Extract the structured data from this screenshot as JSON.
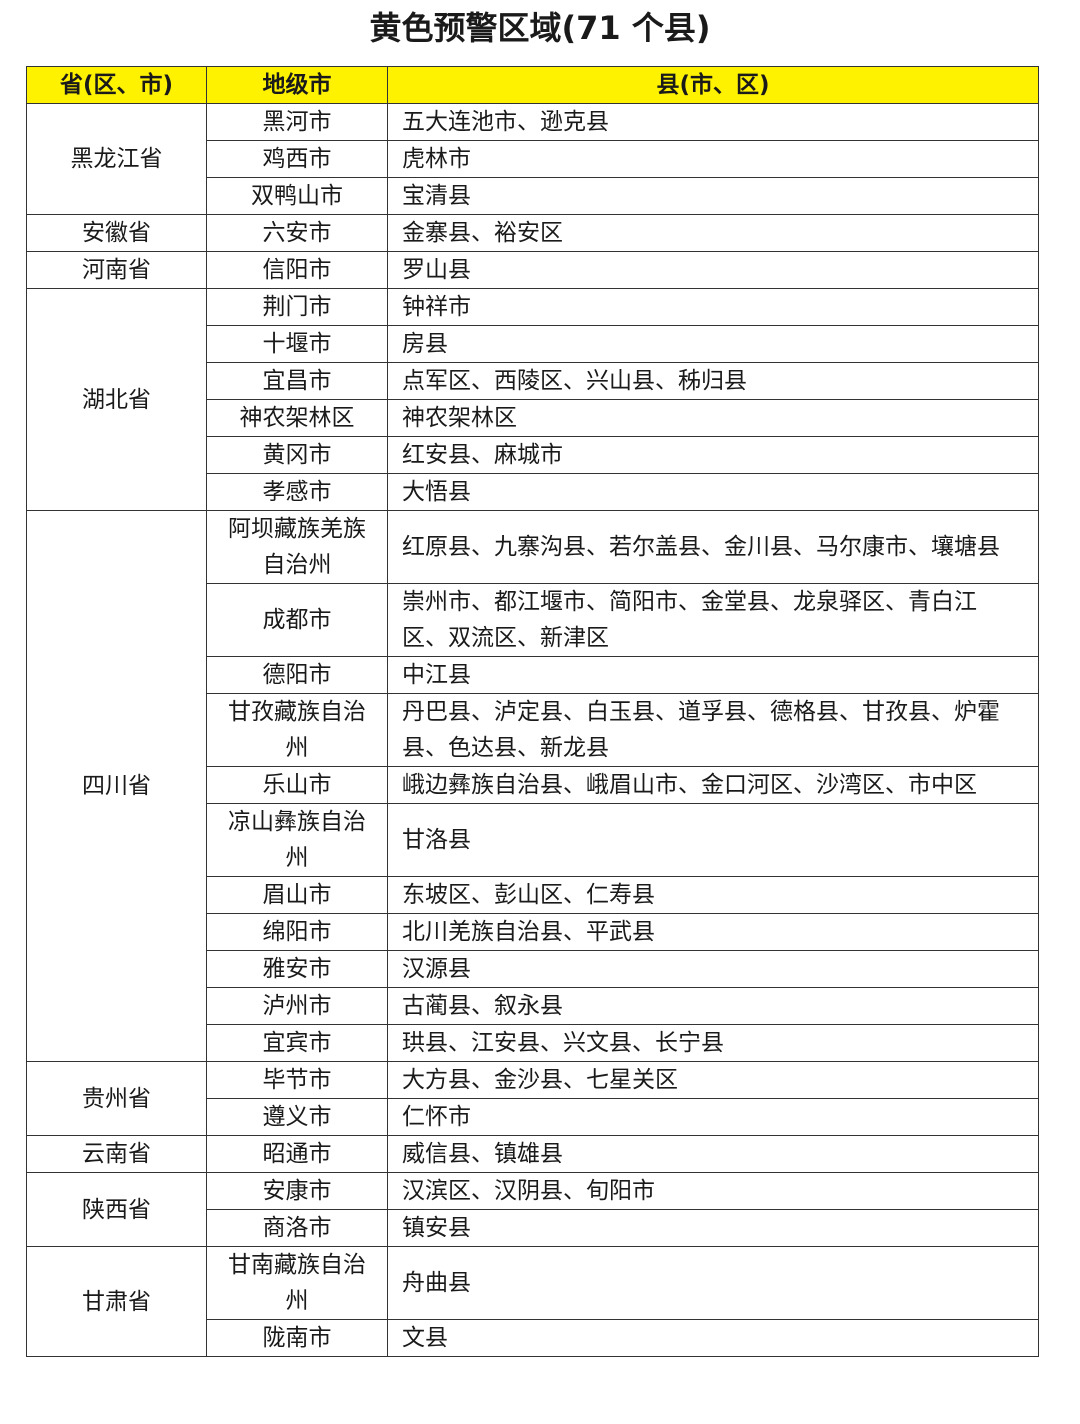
{
  "title": "黄色预警区域(71 个县)",
  "table": {
    "header": [
      "省(区、市)",
      "地级市",
      "县(市、区)"
    ],
    "groups": [
      {
        "province": "黑龙江省",
        "rows": [
          [
            "黑河市",
            "五大连池市、逊克县"
          ],
          [
            "鸡西市",
            "虎林市"
          ],
          [
            "双鸭山市",
            "宝清县"
          ]
        ]
      },
      {
        "province": "安徽省",
        "rows": [
          [
            "六安市",
            "金寨县、裕安区"
          ]
        ]
      },
      {
        "province": "河南省",
        "rows": [
          [
            "信阳市",
            "罗山县"
          ]
        ]
      },
      {
        "province": "湖北省",
        "rows": [
          [
            "荆门市",
            "钟祥市"
          ],
          [
            "十堰市",
            "房县"
          ],
          [
            "宜昌市",
            "点军区、西陵区、兴山县、秭归县"
          ],
          [
            "神农架林区",
            "神农架林区"
          ],
          [
            "黄冈市",
            "红安县、麻城市"
          ],
          [
            "孝感市",
            "大悟县"
          ]
        ]
      },
      {
        "province": "四川省",
        "rows": [
          [
            "阿坝藏族羌族自治州",
            "红原县、九寨沟县、若尔盖县、金川县、马尔康市、壤塘县"
          ],
          [
            "成都市",
            "崇州市、都江堰市、简阳市、金堂县、龙泉驿区、青白江区、双流区、新津区"
          ],
          [
            "德阳市",
            "中江县"
          ],
          [
            "甘孜藏族自治州",
            "丹巴县、泸定县、白玉县、道孚县、德格县、甘孜县、炉霍县、色达县、新龙县"
          ],
          [
            "乐山市",
            "峨边彝族自治县、峨眉山市、金口河区、沙湾区、市中区"
          ],
          [
            "凉山彝族自治州",
            "甘洛县"
          ],
          [
            "眉山市",
            "东坡区、彭山区、仁寿县"
          ],
          [
            "绵阳市",
            "北川羌族自治县、平武县"
          ],
          [
            "雅安市",
            "汉源县"
          ],
          [
            "泸州市",
            "古蔺县、叙永县"
          ],
          [
            "宜宾市",
            "珙县、江安县、兴文县、长宁县"
          ]
        ]
      },
      {
        "province": "贵州省",
        "rows": [
          [
            "毕节市",
            "大方县、金沙县、七星关区"
          ],
          [
            "遵义市",
            "仁怀市"
          ]
        ]
      },
      {
        "province": "云南省",
        "rows": [
          [
            "昭通市",
            "威信县、镇雄县"
          ]
        ]
      },
      {
        "province": "陕西省",
        "rows": [
          [
            "安康市",
            "汉滨区、汉阴县、旬阳市"
          ],
          [
            "商洛市",
            "镇安县"
          ]
        ]
      },
      {
        "province": "甘肃省",
        "rows": [
          [
            "甘南藏族自治州",
            "舟曲县"
          ],
          [
            "陇南市",
            "文县"
          ]
        ]
      }
    ]
  }
}
